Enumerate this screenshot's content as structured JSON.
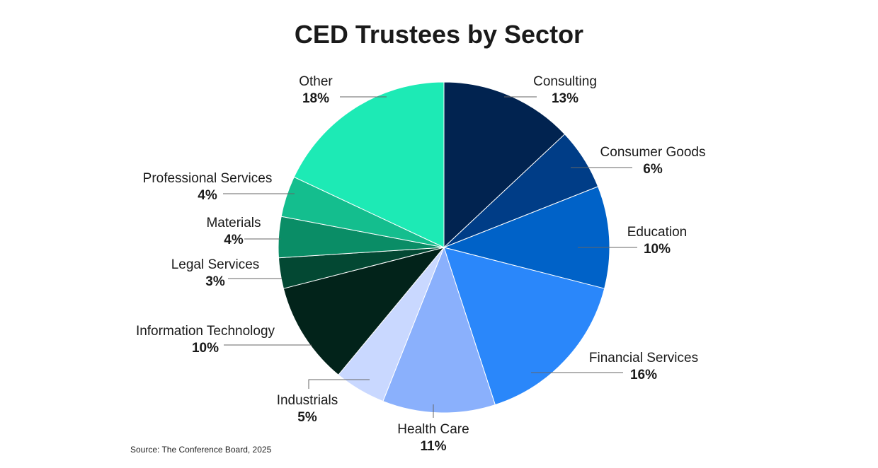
{
  "chart_data": {
    "type": "pie",
    "title": "CED Trustees by Sector",
    "source": "Source: The Conference Board, 2025",
    "slices": [
      {
        "label": "Consulting",
        "pct_label": "13%",
        "value": 13,
        "color": "#012350"
      },
      {
        "label": "Consumer Goods",
        "pct_label": "6%",
        "value": 6,
        "color": "#003d87"
      },
      {
        "label": "Education",
        "pct_label": "10%",
        "value": 10,
        "color": "#0062c8"
      },
      {
        "label": "Financial Services",
        "pct_label": "16%",
        "value": 16,
        "color": "#2a87fa"
      },
      {
        "label": "Health Care",
        "pct_label": "11%",
        "value": 11,
        "color": "#8ab0fc"
      },
      {
        "label": "Industrials",
        "pct_label": "5%",
        "value": 5,
        "color": "#c9d8ff"
      },
      {
        "label": "Information Technology",
        "pct_label": "10%",
        "value": 10,
        "color": "#02231a"
      },
      {
        "label": "Legal Services",
        "pct_label": "3%",
        "value": 3,
        "color": "#034833"
      },
      {
        "label": "Materials",
        "pct_label": "4%",
        "value": 4,
        "color": "#0a8d66"
      },
      {
        "label": "Professional Services",
        "pct_label": "4%",
        "value": 4,
        "color": "#14be8e"
      },
      {
        "label": "Other",
        "pct_label": "18%",
        "value": 18,
        "color": "#1deab5"
      }
    ]
  }
}
